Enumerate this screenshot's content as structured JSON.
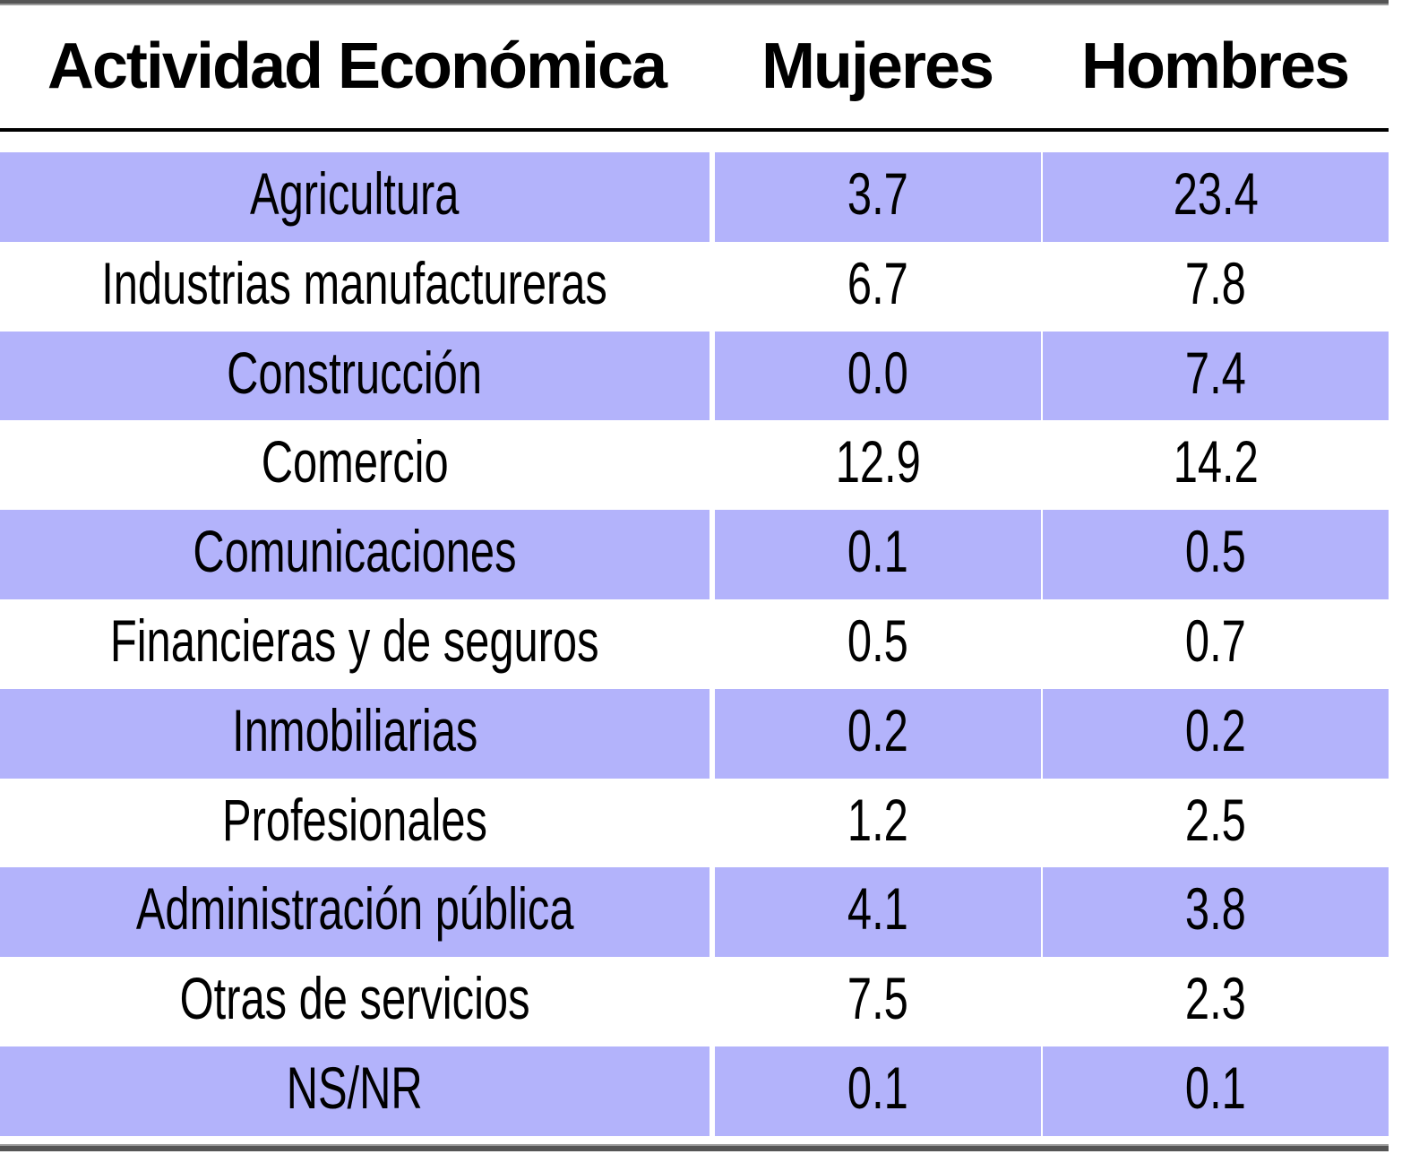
{
  "table": {
    "headers": [
      "Actividad Económica",
      "Mujeres",
      "Hombres"
    ],
    "rows": [
      {
        "activity": "Agricultura",
        "mujeres": "3.7",
        "hombres": "23.4"
      },
      {
        "activity": "Industrias manufactureras",
        "mujeres": "6.7",
        "hombres": "7.8"
      },
      {
        "activity": "Construcción",
        "mujeres": "0.0",
        "hombres": "7.4"
      },
      {
        "activity": "Comercio",
        "mujeres": "12.9",
        "hombres": "14.2"
      },
      {
        "activity": "Comunicaciones",
        "mujeres": "0.1",
        "hombres": "0.5"
      },
      {
        "activity": "Financieras y de seguros",
        "mujeres": "0.5",
        "hombres": "0.7"
      },
      {
        "activity": "Inmobiliarias",
        "mujeres": "0.2",
        "hombres": "0.2"
      },
      {
        "activity": "Profesionales",
        "mujeres": "1.2",
        "hombres": "2.5"
      },
      {
        "activity": "Administración pública",
        "mujeres": "4.1",
        "hombres": "3.8"
      },
      {
        "activity": "Otras de servicios",
        "mujeres": "7.5",
        "hombres": "2.3"
      },
      {
        "activity": "NS/NR",
        "mujeres": "0.1",
        "hombres": "0.1"
      }
    ]
  },
  "colors": {
    "shaded_row": "#b3b3fb",
    "rule": "#000000"
  }
}
